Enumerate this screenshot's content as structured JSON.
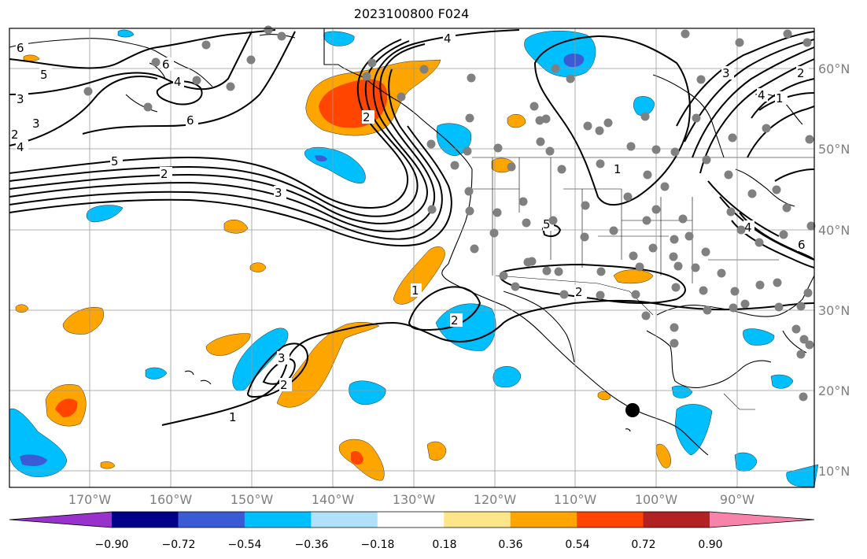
{
  "title": "2023100800 F024",
  "map": {
    "lon_labels": [
      "170°W",
      "160°W",
      "150°W",
      "140°W",
      "130°W",
      "120°W",
      "110°W",
      "100°W",
      "90°W"
    ],
    "lat_labels": [
      "60°N",
      "50°N",
      "40°N",
      "30°N",
      "20°N",
      "10°N"
    ],
    "contour_labels": [
      "6",
      "5",
      "3",
      "2",
      "4",
      "6",
      "4",
      "6",
      "3",
      "5",
      "2",
      "3",
      "1",
      "2",
      "2",
      "3",
      "2",
      "1",
      "1",
      "5",
      "4",
      "2",
      "1",
      "3",
      "6",
      "4",
      "4",
      "2"
    ],
    "marker": "black-dot"
  },
  "colorbar": {
    "ticks": [
      "−0.90",
      "−0.72",
      "−0.54",
      "−0.36",
      "−0.18",
      "0.18",
      "0.36",
      "0.54",
      "0.72",
      "0.90"
    ],
    "colors": [
      "#9932cc",
      "#00008b",
      "#3b5bd6",
      "#00bfff",
      "#b0e0fa",
      "#ffffff",
      "#fde68a",
      "#ffa500",
      "#ff4500",
      "#b22222",
      "#f783ab"
    ]
  }
}
